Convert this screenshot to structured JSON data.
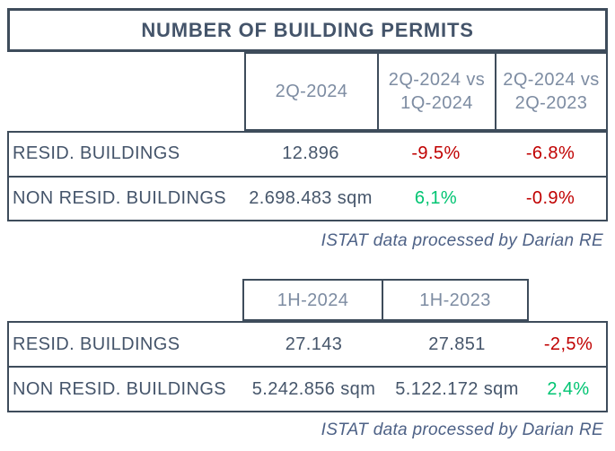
{
  "title": "NUMBER OF BUILDING PERMITS",
  "colors": {
    "border": "#3e4c5b",
    "title": "#44546a",
    "header-text": "#7d8ca2",
    "text": "#46566b",
    "negative": "#c00000",
    "positive": "#00c472",
    "source": "#4d6186"
  },
  "table1": {
    "headers": [
      "2Q-2024",
      "2Q-2024 vs 1Q-2024",
      "2Q-2024 vs 2Q-2023"
    ],
    "rows": [
      {
        "label": "RESID. BUILDINGS",
        "values": [
          "12.896",
          "-9.5%",
          "-6.8%"
        ]
      },
      {
        "label": "NON RESID. BUILDINGS",
        "values": [
          "2.698.483 sqm",
          "6,1%",
          "-0.9%"
        ]
      }
    ],
    "source": "ISTAT data processed by Darian RE"
  },
  "table2": {
    "headers": [
      "1H-2024",
      "1H-2023"
    ],
    "rows": [
      {
        "label": "RESID. BUILDINGS",
        "values": [
          "27.143",
          "27.851",
          "-2,5%"
        ]
      },
      {
        "label": "NON RESID. BUILDINGS",
        "values": [
          "5.242.856 sqm",
          "5.122.172 sqm",
          "2,4%"
        ]
      }
    ],
    "source": "ISTAT data processed by Darian RE"
  },
  "chart_data": [
    {
      "type": "table",
      "title": "NUMBER OF BUILDING PERMITS",
      "columns": [
        "",
        "2Q-2024",
        "2Q-2024 vs 1Q-2024",
        "2Q-2024 vs 2Q-2023"
      ],
      "rows": [
        [
          "RESID. BUILDINGS",
          "12.896",
          "-9.5%",
          "-6.8%"
        ],
        [
          "NON RESID. BUILDINGS",
          "2.698.483 sqm",
          "6,1%",
          "-0.9%"
        ]
      ],
      "value_colors": [
        [
          "default",
          "default",
          "negative",
          "negative"
        ],
        [
          "default",
          "default",
          "positive",
          "negative"
        ]
      ],
      "source": "ISTAT data processed by Darian RE"
    },
    {
      "type": "table",
      "title": "",
      "columns": [
        "",
        "1H-2024",
        "1H-2023",
        ""
      ],
      "rows": [
        [
          "RESID. BUILDINGS",
          "27.143",
          "27.851",
          "-2,5%"
        ],
        [
          "NON RESID. BUILDINGS",
          "5.242.856 sqm",
          "5.122.172 sqm",
          "2,4%"
        ]
      ],
      "value_colors": [
        [
          "default",
          "default",
          "default",
          "negative"
        ],
        [
          "default",
          "default",
          "default",
          "positive"
        ]
      ],
      "source": "ISTAT data processed by Darian RE"
    }
  ]
}
